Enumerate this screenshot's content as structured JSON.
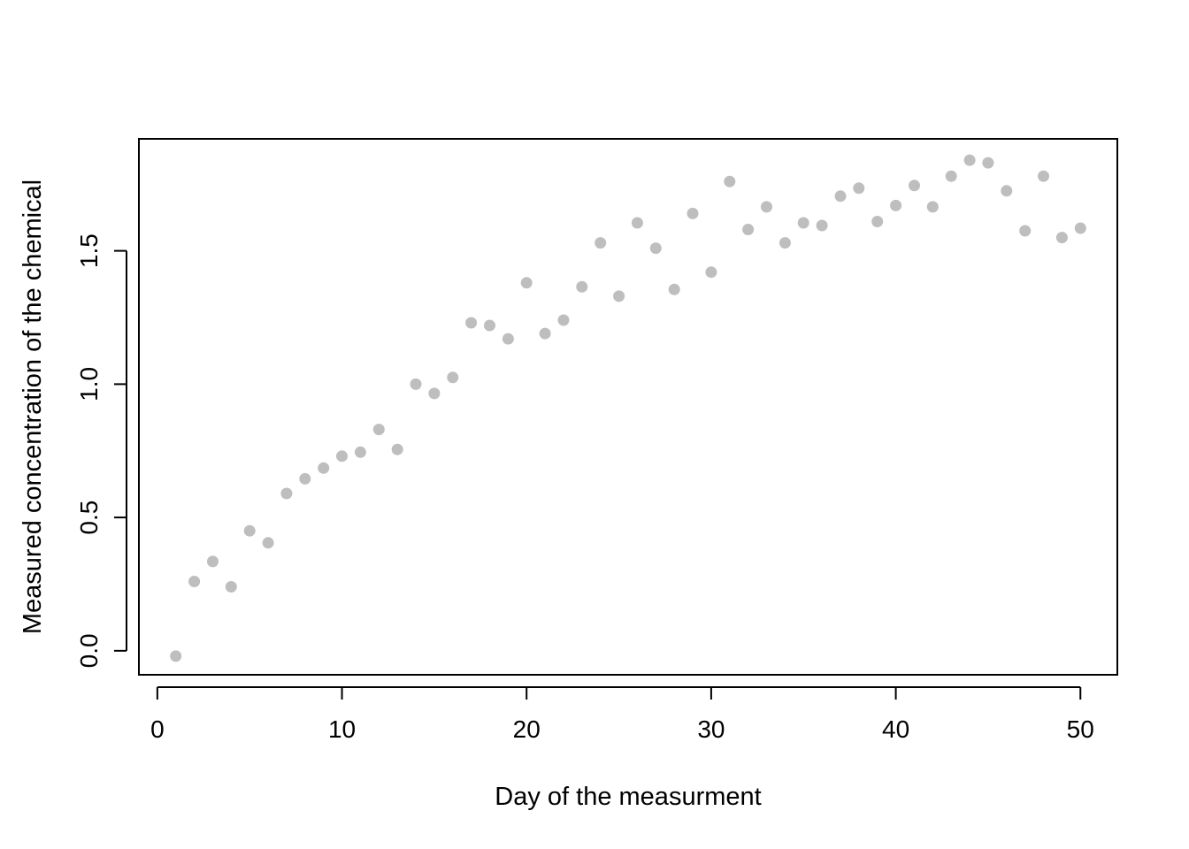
{
  "chart_data": {
    "type": "scatter",
    "title": "",
    "xlabel": "Day of the measurment",
    "ylabel": "Measured concentration of the chemical",
    "xlim": [
      -1,
      52
    ],
    "ylim": [
      -0.09,
      1.92
    ],
    "x_ticks": [
      0,
      10,
      20,
      30,
      40,
      50
    ],
    "y_ticks": [
      0.0,
      0.5,
      1.0,
      1.5
    ],
    "x_tick_labels": [
      "0",
      "10",
      "20",
      "30",
      "40",
      "50"
    ],
    "y_tick_labels": [
      "0.0",
      "0.5",
      "1.0",
      "1.5"
    ],
    "grid": false,
    "point_color": "#bebebe",
    "series": [
      {
        "x": [
          1,
          2,
          3,
          4,
          5,
          6,
          7,
          8,
          9,
          10,
          11,
          12,
          13,
          14,
          15,
          16,
          17,
          18,
          19,
          20,
          21,
          22,
          23,
          24,
          25,
          26,
          27,
          28,
          29,
          30,
          31,
          32,
          33,
          34,
          35,
          36,
          37,
          38,
          39,
          40,
          41,
          42,
          43,
          44,
          45,
          46,
          47,
          48,
          49,
          50
        ],
        "y": [
          -0.02,
          0.26,
          0.335,
          0.24,
          0.45,
          0.405,
          0.59,
          0.645,
          0.685,
          0.73,
          0.745,
          0.83,
          0.755,
          1.0,
          0.965,
          1.025,
          1.23,
          1.22,
          1.17,
          1.38,
          1.19,
          1.24,
          1.365,
          1.53,
          1.33,
          1.605,
          1.51,
          1.355,
          1.64,
          1.42,
          1.76,
          1.58,
          1.665,
          1.53,
          1.605,
          1.595,
          1.705,
          1.735,
          1.61,
          1.67,
          1.745,
          1.665,
          1.78,
          1.84,
          1.83,
          1.725,
          1.575,
          1.78,
          1.55,
          1.585
        ]
      }
    ]
  }
}
